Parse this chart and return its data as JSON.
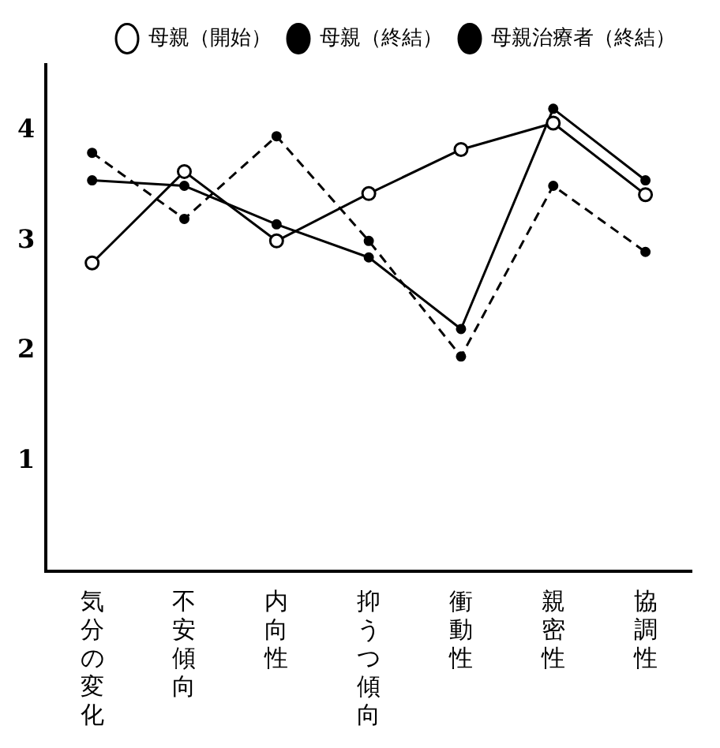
{
  "chart_data": {
    "type": "line",
    "categories": [
      "気分の変化",
      "不安傾向",
      "内向性",
      "抑うつ傾向",
      "衝動性",
      "親密性",
      "協調性"
    ],
    "series": [
      {
        "name": "母親（開始）",
        "color": "#000000",
        "marker": "circle",
        "line_style": "solid",
        "values": [
          2.8,
          3.63,
          3.0,
          3.43,
          3.83,
          4.07,
          3.42
        ]
      },
      {
        "name": "母親（終結）",
        "color": "#000000",
        "marker": "circle",
        "line_style": "solid",
        "values": [
          3.55,
          3.5,
          3.15,
          2.85,
          2.2,
          4.2,
          3.55
        ]
      },
      {
        "name": "母親治療者（終結）",
        "color": "#000000",
        "marker": "circle",
        "line_style": "dashed",
        "values": [
          3.8,
          3.2,
          3.95,
          3.0,
          1.95,
          3.5,
          2.9
        ]
      }
    ],
    "ylim": [
      0,
      4.6
    ],
    "yticks": [
      1,
      2,
      3,
      4
    ],
    "grid": false,
    "legend": "top right"
  }
}
